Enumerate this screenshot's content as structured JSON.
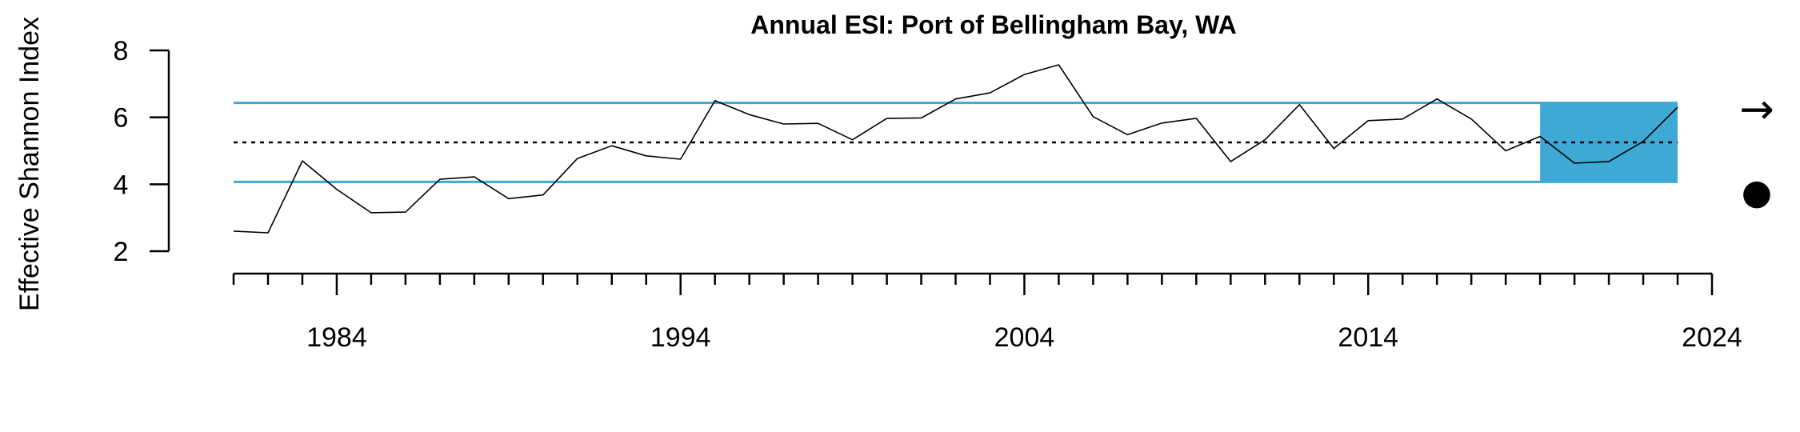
{
  "chart_data": {
    "type": "line",
    "title": "Annual ESI: Port of Bellingham Bay, WA",
    "ylabel": "Effective Shannon Index",
    "xlabel": "",
    "xlim": [
      1981,
      2024
    ],
    "ylim": [
      2,
      8
    ],
    "y_ticks": [
      "2",
      "4",
      "6",
      "8"
    ],
    "x_ticks": [
      "1984",
      "1994",
      "2004",
      "2014",
      "2024"
    ],
    "x": [
      1981,
      1982,
      1983,
      1984,
      1985,
      1986,
      1987,
      1988,
      1989,
      1990,
      1991,
      1992,
      1993,
      1994,
      1995,
      1996,
      1997,
      1998,
      1999,
      2000,
      2001,
      2002,
      2003,
      2004,
      2005,
      2006,
      2007,
      2008,
      2009,
      2010,
      2011,
      2012,
      2013,
      2014,
      2015,
      2016,
      2017,
      2018,
      2019,
      2020,
      2021,
      2022,
      2023
    ],
    "series": [
      {
        "values": [
          2.6,
          2.55,
          4.7,
          3.85,
          3.15,
          3.17,
          4.15,
          4.22,
          3.57,
          3.68,
          4.77,
          5.15,
          4.85,
          4.75,
          6.5,
          6.08,
          5.8,
          5.82,
          5.33,
          5.97,
          5.98,
          6.55,
          6.73,
          7.28,
          7.57,
          6.02,
          5.48,
          5.83,
          5.97,
          4.68,
          5.33,
          6.38,
          5.07,
          5.9,
          5.95,
          6.55,
          5.95,
          5.0,
          5.43,
          4.63,
          4.68,
          5.28,
          6.3
        ],
        "color": "#000000"
      }
    ],
    "mean": 5.25,
    "upper_band": 6.43,
    "lower_band": 4.07,
    "band_color": "#3fa9d6",
    "highlight_x_range": [
      2019,
      2023
    ],
    "highlight_color": "#3fa9d6",
    "grid": false,
    "trend_symbols": {
      "trend": "→",
      "level": "●"
    }
  }
}
